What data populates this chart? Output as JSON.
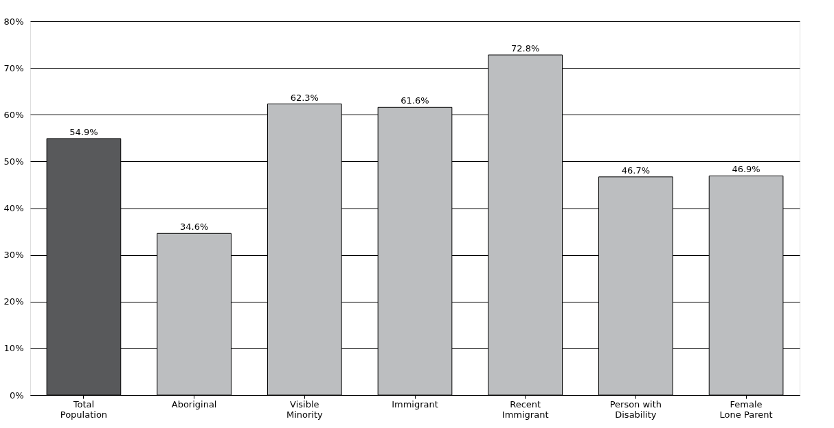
{
  "chart_data": {
    "type": "bar",
    "categories": [
      "Total\nPopulation",
      "Aboriginal",
      "Visible\nMinority",
      "Immigrant",
      "Recent\nImmigrant",
      "Person with\nDisability",
      "Female\nLone Parent"
    ],
    "values": [
      54.9,
      34.6,
      62.3,
      61.6,
      72.8,
      46.7,
      46.9
    ],
    "colors": [
      "#58595b",
      "#bcbec0",
      "#bcbec0",
      "#bcbec0",
      "#bcbec0",
      "#bcbec0",
      "#bcbec0"
    ],
    "value_labels": [
      "54.9%",
      "34.6%",
      "62.3%",
      "61.6%",
      "72.8%",
      "46.7%",
      "46.9%"
    ],
    "ylim": [
      0,
      80
    ],
    "yticks": [
      {
        "value": 0,
        "label": "0%"
      },
      {
        "value": 10,
        "label": "10%"
      },
      {
        "value": 20,
        "label": "20%"
      },
      {
        "value": 30,
        "label": "30%"
      },
      {
        "value": 40,
        "label": "40%"
      },
      {
        "value": 50,
        "label": "50%"
      },
      {
        "value": 60,
        "label": "60%"
      },
      {
        "value": 70,
        "label": "70%"
      },
      {
        "value": 80,
        "label": "80%"
      }
    ],
    "grid": "y"
  }
}
